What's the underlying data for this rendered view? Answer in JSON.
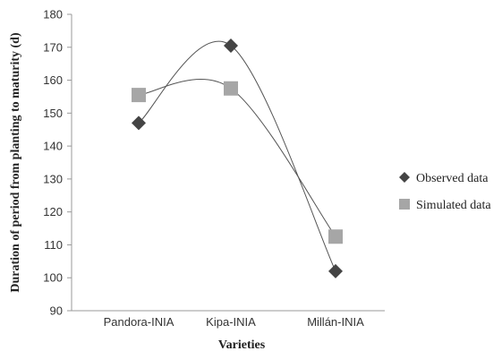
{
  "chart_data": {
    "type": "scatter",
    "categories": [
      "Pandora-INIA",
      "Kipa-INIA",
      "Millán-INIA"
    ],
    "xlabel": "Varieties",
    "ylabel": "Duration of period from planting to maturity (d)",
    "ylim": [
      90,
      180
    ],
    "yticks": [
      90,
      100,
      110,
      120,
      130,
      140,
      150,
      160,
      170,
      180
    ],
    "grid": false,
    "legend_position": "right",
    "trendline": "smoothed curve through points",
    "series": [
      {
        "name": "Observed data",
        "marker": "diamond",
        "color": "#444444",
        "values": [
          147,
          170.5,
          102
        ]
      },
      {
        "name": "Simulated data",
        "marker": "square",
        "color": "#a6a6a6",
        "values": [
          155.5,
          157.5,
          112.5
        ]
      }
    ]
  }
}
